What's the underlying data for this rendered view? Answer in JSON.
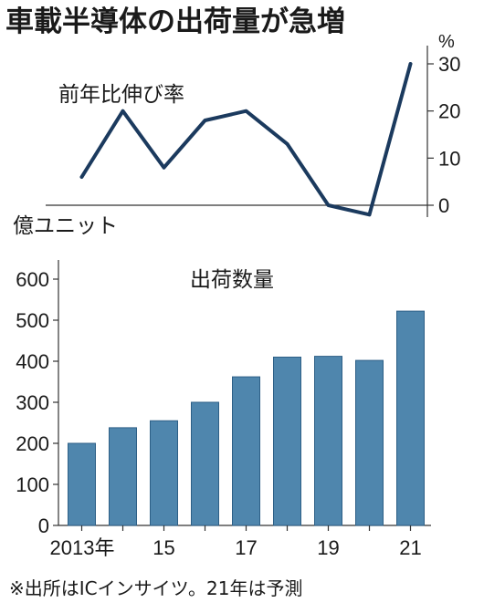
{
  "title": "車載半導体の出荷量が急増",
  "source_note": "※出所はICインサイツ。21年は予測",
  "colors": {
    "line": "#1b3a5e",
    "bar": "#4f86ad",
    "bar_edge": "#2d5f86",
    "axis": "#333333"
  },
  "chart_data": [
    {
      "type": "line",
      "label": "前年比伸び率",
      "unit": "%",
      "x": [
        2013,
        2014,
        2015,
        2016,
        2017,
        2018,
        2019,
        2020,
        2021
      ],
      "values": [
        6,
        20,
        8,
        18,
        20,
        13,
        0,
        -2,
        30
      ],
      "ylim": [
        -5,
        33
      ],
      "y_ticks": [
        0,
        10,
        20,
        30
      ],
      "y_tick_labels": [
        "0",
        "10",
        "20",
        "30"
      ],
      "y_axis_side": "right",
      "grid": false
    },
    {
      "type": "bar",
      "label": "出荷数量",
      "unit": "億ユニット",
      "categories": [
        "2013",
        "2014",
        "2015",
        "2016",
        "2017",
        "2018",
        "2019",
        "2020",
        "2021"
      ],
      "values": [
        200,
        238,
        255,
        300,
        362,
        410,
        412,
        402,
        522
      ],
      "ylim": [
        0,
        650
      ],
      "y_ticks": [
        0,
        100,
        200,
        300,
        400,
        500,
        600
      ],
      "y_tick_labels": [
        "0",
        "100",
        "200",
        "300",
        "400",
        "500",
        "600"
      ],
      "x_tick_labels": [
        "2013年",
        "15",
        "17",
        "19",
        "21"
      ],
      "x_tick_index": [
        0,
        2,
        4,
        6,
        8
      ],
      "grid": false
    }
  ]
}
